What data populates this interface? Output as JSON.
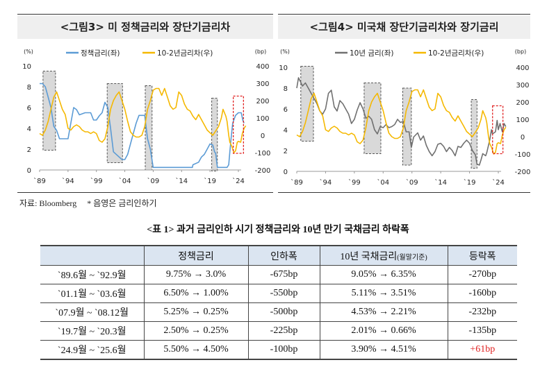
{
  "figure3": {
    "title": "<그림3> 미 정책금리와 장단기금리차",
    "chart_data": {
      "type": "line",
      "title": "<그림3> 미 정책금리와 장단기금리차",
      "left_unit": "(%)",
      "right_unit": "(bp)",
      "left_ylim": [
        0,
        10
      ],
      "right_ylim": [
        -200,
        400
      ],
      "left_ticks": [
        "10",
        "8",
        "6",
        "4",
        "2",
        "0"
      ],
      "right_ticks": [
        "400",
        "300",
        "200",
        "100",
        "0",
        "-100",
        "-200"
      ],
      "x_ticks": [
        "`89",
        "`94",
        "`99",
        "`04",
        "`09",
        "`14",
        "`19",
        "`24"
      ],
      "xlim": [
        1989,
        2024
      ],
      "legend_position": "top",
      "shaded_periods": [
        [
          1989.6,
          1991.8
        ],
        [
          2000.9,
          2003.6
        ],
        [
          2007.6,
          2008.8
        ],
        [
          2019.3,
          2020.3
        ]
      ],
      "highlight_period": [
        2023.1,
        2024.9
      ],
      "series": [
        {
          "name": "정책금리(좌)",
          "axis": "left",
          "color": "#5b9bd5",
          "x": [
            1989,
            1989.5,
            1990,
            1990.5,
            1991,
            1991.5,
            1992,
            1992.5,
            1993,
            1994,
            1994.5,
            1995,
            1995.5,
            1996,
            1997,
            1998,
            1998.5,
            1999,
            1999.5,
            2000,
            2000.5,
            2001,
            2001.5,
            2002,
            2003,
            2003.5,
            2004,
            2004.5,
            2005,
            2005.5,
            2006,
            2006.5,
            2007,
            2007.5,
            2008,
            2008.5,
            2009,
            2015.9,
            2016,
            2017,
            2017.5,
            2018,
            2018.5,
            2019,
            2019.5,
            2019.8,
            2020,
            2020.3,
            2022,
            2022.3,
            2022.5,
            2022.8,
            2023,
            2023.5,
            2024,
            2024.5,
            2024.8,
            2025
          ],
          "values": [
            8.3,
            8.3,
            8,
            7,
            6,
            4.2,
            3.8,
            3,
            3,
            3,
            4.5,
            6,
            5.8,
            5.3,
            5.5,
            5.5,
            4.8,
            4.8,
            5.2,
            5.5,
            6.5,
            6,
            4,
            1.75,
            1.25,
            1,
            1,
            1.5,
            2.5,
            3.5,
            4.5,
            5.25,
            5.25,
            5.25,
            3,
            2,
            0.25,
            0.25,
            0.5,
            0.75,
            1.25,
            1.5,
            2,
            2.5,
            2.4,
            1.75,
            1.6,
            0.25,
            0.25,
            0.5,
            1.75,
            3.5,
            4.5,
            5.25,
            5.5,
            5.5,
            4.75,
            4.5
          ]
        },
        {
          "name": "10-2년금리차(우)",
          "axis": "right",
          "color": "#f5b800",
          "x": [
            1989,
            1989.5,
            1990,
            1990.5,
            1991,
            1991.5,
            1992,
            1992.5,
            1993,
            1993.5,
            1994,
            1994.5,
            1995,
            1995.5,
            1996,
            1996.5,
            1997,
            1997.5,
            1998,
            1998.5,
            1999,
            1999.5,
            2000,
            2000.5,
            2001,
            2001.5,
            2002,
            2002.5,
            2003,
            2003.5,
            2004,
            2004.5,
            2005,
            2005.5,
            2006,
            2006.5,
            2007,
            2007.5,
            2008,
            2008.5,
            2009,
            2009.5,
            2010,
            2010.5,
            2011,
            2011.5,
            2012,
            2012.5,
            2013,
            2013.5,
            2014,
            2014.5,
            2015,
            2015.5,
            2016,
            2016.5,
            2017,
            2017.5,
            2018,
            2018.5,
            2019,
            2019.5,
            2020,
            2020.5,
            2021,
            2021.3,
            2021.8,
            2022,
            2022.3,
            2022.5,
            2022.8,
            2023.2,
            2023.5,
            2023.8,
            2024,
            2024.4,
            2024.7,
            2025,
            2025.3
          ],
          "values": [
            10,
            0,
            30,
            80,
            150,
            220,
            250,
            200,
            150,
            120,
            40,
            30,
            50,
            60,
            50,
            30,
            20,
            20,
            10,
            20,
            10,
            -30,
            -40,
            -20,
            50,
            150,
            200,
            230,
            250,
            200,
            150,
            80,
            20,
            0,
            -10,
            -10,
            0,
            50,
            150,
            200,
            260,
            270,
            270,
            230,
            270,
            220,
            170,
            150,
            160,
            250,
            230,
            180,
            150,
            140,
            110,
            90,
            120,
            90,
            60,
            30,
            15,
            0,
            25,
            50,
            100,
            150,
            110,
            80,
            0,
            -40,
            -60,
            -100,
            -90,
            -40,
            -35,
            -40,
            10,
            40,
            55
          ]
        }
      ]
    }
  },
  "figure4": {
    "title": "<그림4> 미국채 장단기금리차와 장기금리",
    "chart_data": {
      "type": "line",
      "title": "<그림4> 미국채 장단기금리차와 장기금리",
      "left_unit": "(%)",
      "right_unit": "(bp)",
      "left_ylim": [
        0,
        10
      ],
      "right_ylim": [
        -200,
        400
      ],
      "left_ticks": [
        "10",
        "8",
        "6",
        "4",
        "2",
        "0"
      ],
      "right_ticks": [
        "400",
        "300",
        "200",
        "100",
        "0",
        "-100",
        "-200"
      ],
      "x_ticks": [
        "`89",
        "`94",
        "`99",
        "`04",
        "`09",
        "`14",
        "`19",
        "`24"
      ],
      "xlim": [
        1989,
        2024
      ],
      "legend_position": "top",
      "shaded_periods": [
        [
          1989.7,
          1991.9
        ],
        [
          2000.7,
          2003.6
        ],
        [
          2007.4,
          2008.9
        ],
        [
          2019.3,
          2020.3
        ]
      ],
      "highlight_period": [
        2023.0,
        2024.8
      ],
      "series": [
        {
          "name": "10년 금리(좌)",
          "axis": "left",
          "color": "#707070",
          "x": [
            1989,
            1989.3,
            1990,
            1990.5,
            1991,
            1991.5,
            1992,
            1992.5,
            1993,
            1993.5,
            1994,
            1994.5,
            1995,
            1995.5,
            1996,
            1996.5,
            1997,
            1997.5,
            1998,
            1998.5,
            1999,
            1999.5,
            2000,
            2000.5,
            2001,
            2001.5,
            2002,
            2002.5,
            2003,
            2003.5,
            2004,
            2004.5,
            2005,
            2005.5,
            2006,
            2006.5,
            2007,
            2007.5,
            2008,
            2008.5,
            2008.9,
            2009.3,
            2010,
            2010.5,
            2011,
            2011.5,
            2012,
            2012.5,
            2013,
            2013.5,
            2014,
            2014.5,
            2015,
            2015.5,
            2016,
            2016.5,
            2017,
            2017.5,
            2018,
            2018.5,
            2019,
            2019.5,
            2020,
            2020.3,
            2020.7,
            2021,
            2021.3,
            2021.8,
            2022,
            2022.5,
            2022.8,
            2023,
            2023.5,
            2023.8,
            2024,
            2024.3,
            2024.7,
            2025,
            2025.3
          ],
          "values": [
            8,
            9,
            8.2,
            8.5,
            8,
            7.5,
            7,
            6.5,
            5.8,
            5.5,
            6,
            7.5,
            7.8,
            6.2,
            5.8,
            6.8,
            6.5,
            6,
            5.5,
            4.6,
            5,
            5.9,
            6.6,
            6,
            5.1,
            5.3,
            5,
            4,
            3.6,
            4.3,
            4.2,
            4.5,
            4.2,
            4.3,
            4.5,
            5,
            4.7,
            4.8,
            3.8,
            3.8,
            2.3,
            3.3,
            3.7,
            3,
            3.4,
            2.5,
            1.9,
            1.5,
            1.9,
            2.6,
            2.7,
            2.4,
            1.9,
            2.3,
            2,
            1.5,
            2.4,
            2.3,
            2.7,
            3,
            2.7,
            2,
            1.6,
            0.7,
            0.6,
            1.1,
            1.7,
            1.5,
            1.8,
            3,
            4,
            3.6,
            3.8,
            4.9,
            4,
            4.6,
            3.8,
            4.6,
            4.3
          ]
        },
        {
          "name": "10-2년금리차(우)",
          "axis": "right",
          "color": "#f5b800",
          "x": [
            1989,
            1989.5,
            1990,
            1990.5,
            1991,
            1991.5,
            1992,
            1992.5,
            1993,
            1993.5,
            1994,
            1994.5,
            1995,
            1995.5,
            1996,
            1996.5,
            1997,
            1997.5,
            1998,
            1998.5,
            1999,
            1999.5,
            2000,
            2000.5,
            2001,
            2001.5,
            2002,
            2002.5,
            2003,
            2003.5,
            2004,
            2004.5,
            2005,
            2005.5,
            2006,
            2006.5,
            2007,
            2007.5,
            2008,
            2008.5,
            2009,
            2009.5,
            2010,
            2010.5,
            2011,
            2011.5,
            2012,
            2012.5,
            2013,
            2013.5,
            2014,
            2014.5,
            2015,
            2015.5,
            2016,
            2016.5,
            2017,
            2017.5,
            2018,
            2018.5,
            2019,
            2019.5,
            2020,
            2020.5,
            2021,
            2021.3,
            2021.8,
            2022,
            2022.3,
            2022.5,
            2022.8,
            2023.2,
            2023.5,
            2023.8,
            2024,
            2024.4,
            2024.7,
            2025,
            2025.3
          ],
          "values": [
            10,
            0,
            30,
            80,
            150,
            220,
            250,
            200,
            150,
            120,
            40,
            30,
            50,
            60,
            50,
            30,
            20,
            20,
            10,
            20,
            10,
            -30,
            -40,
            -20,
            50,
            150,
            200,
            230,
            250,
            200,
            150,
            80,
            20,
            0,
            -10,
            -10,
            0,
            50,
            150,
            200,
            260,
            270,
            270,
            230,
            270,
            220,
            170,
            150,
            160,
            250,
            230,
            180,
            150,
            140,
            110,
            90,
            120,
            90,
            60,
            30,
            15,
            0,
            25,
            50,
            100,
            150,
            110,
            80,
            0,
            -40,
            -60,
            -100,
            -90,
            -40,
            -35,
            -40,
            10,
            40,
            55
          ]
        }
      ]
    }
  },
  "source": {
    "text": "자료: Bloomberg",
    "note": "* 음영은 금리인하기"
  },
  "table": {
    "title": "<표 1> 과거 금리인하 시기 정책금리와 10년 만기 국채금리 하락폭",
    "headers": [
      "",
      "정책금리",
      "인하폭",
      "10년 국채금리",
      "등락폭"
    ],
    "header_note": "(월말기준)",
    "rows": [
      [
        "`89.6월 ~ `92.9월",
        "9.75% → 3.0%",
        "-675bp",
        "9.05% → 6.35%",
        "-270bp"
      ],
      [
        "`01.1월 ~ `03.6월",
        "6.50% → 1.00%",
        "-550bp",
        "5.11% → 3.51%",
        "-160bp"
      ],
      [
        "`07.9월 ~ `08.12월",
        "5.25% → 0.25%",
        "-500bp",
        "4.53% → 2.21%",
        "-232bp"
      ],
      [
        "`19.7월 ~ `20.3월",
        "2.50% → 0.25%",
        "-225bp",
        "2.01% → 0.66%",
        "-135bp"
      ],
      [
        "`24.9월 ~ `25.6월",
        "5.50% → 4.50%",
        "-100bp",
        "3.90% → 4.51%",
        "+61bp"
      ]
    ],
    "highlight_color": "#e02020"
  }
}
